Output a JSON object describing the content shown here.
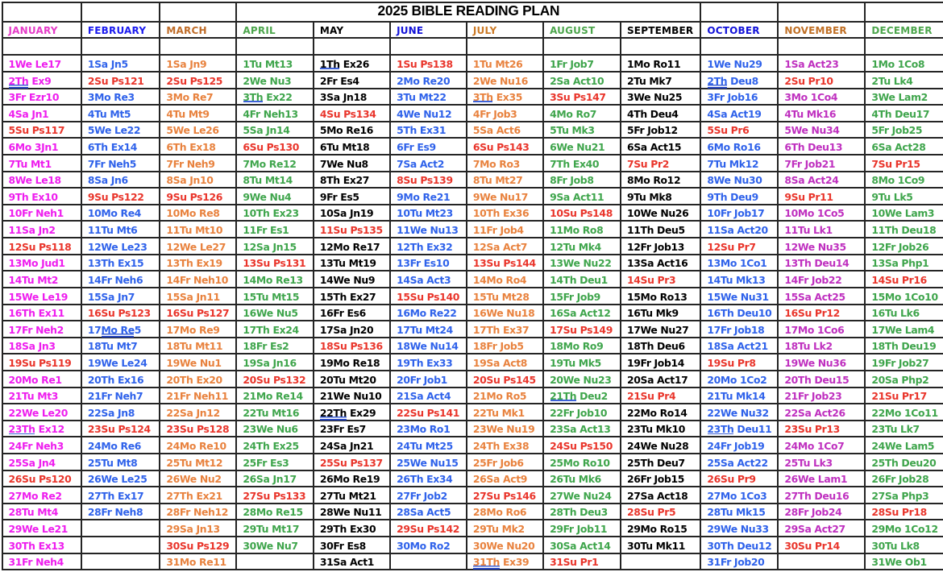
{
  "title": "2025 BIBLE READING PLAN",
  "colors": {
    "border": "#222222",
    "background": "#ffffff",
    "sunday_red": "#e9352b",
    "underline_single": "#3e63d8",
    "underline_double": "#2b4fd0"
  },
  "months": [
    {
      "name": "JANUARY",
      "header_color": "#e53cc8",
      "body_color": "#ee1dee",
      "days": [
        "1We Le17",
        "2Th Ex9",
        "3Fr Ezr10",
        "4Sa Jn1",
        "5Su Ps117",
        "6Mo 3Jn1",
        "7Tu Mt1",
        "8We Le18",
        "9Th Ex10",
        "10Fr Neh1",
        "11Sa Jn2",
        "12Su Ps118",
        "13Mo Jud1",
        "14Tu Mt2",
        "15We Le19",
        "16Th Ex11",
        "17Fr Neh2",
        "18Sa Jn3",
        "19Su Ps119",
        "20Mo Re1",
        "21Tu Mt3",
        "22We Le20",
        "23Th Ex12",
        "24Fr Neh3",
        "25Sa Jn4",
        "26Su Ps120",
        "27Mo Re2",
        "28Tu Mt4",
        "29We Le21",
        "30Th Ex13",
        "31Fr Neh4"
      ]
    },
    {
      "name": "FEBRUARY",
      "header_color": "#1b1bf0",
      "body_color": "#2f62ea",
      "days": [
        "1Sa Jn5",
        "2Su Ps121",
        "3Mo Re3",
        "4Tu Mt5",
        "5We Le22",
        "6Th Ex14",
        "7Fr Neh5",
        "8Sa Jn6",
        "9Su Ps122",
        "10Mo Re4",
        "11Tu Mt6",
        "12We Le23",
        "13Th Ex15",
        "14Fr Neh6",
        "15Sa Jn7",
        "16Su Ps123",
        "17Mo Re5",
        "18Tu Mt7",
        "19We Le24",
        "20Th Ex16",
        "21Fr Neh7",
        "22Sa Jn8",
        "23Su Ps124",
        "24Mo Re6",
        "25Tu Mt8",
        "26We Le25",
        "27Th Ex17",
        "28Fr Neh8",
        "",
        "",
        ""
      ]
    },
    {
      "name": "MARCH",
      "header_color": "#bf6c28",
      "body_color": "#e8823e",
      "days": [
        "1Sa Jn9",
        "2Su Ps125",
        "3Mo Re7",
        "4Tu Mt9",
        "5We Le26",
        "6Th Ex18",
        "7Fr Neh9",
        "8Sa Jn10",
        "9Su Ps126",
        "10Mo Re8",
        "11Tu Mt10",
        "12We Le27",
        "13Th Ex19",
        "14Fr Neh10",
        "15Sa Jn11",
        "16Su Ps127",
        "17Mo Re9",
        "18Tu Mt11",
        "19We Nu1",
        "20Th Ex20",
        "21Fr Neh11",
        "22Sa Jn12",
        "23Su Ps128",
        "24Mo Re10",
        "25Tu Mt12",
        "26We Nu2",
        "27Th Ex21",
        "28Fr Neh12",
        "29Sa Jn13",
        "30Su Ps129",
        "31Mo Re11"
      ]
    },
    {
      "name": "APRIL",
      "header_color": "#4da64d",
      "body_color": "#3fa54c",
      "days": [
        "1Tu Mt13",
        "2We Nu3",
        "3Th Ex22",
        "4Fr Neh13",
        "5Sa Jn14",
        "6Su Ps130",
        "7Mo Re12",
        "8Tu Mt14",
        "9We Nu4",
        "10Th Ex23",
        "11Fr Es1",
        "12Sa Jn15",
        "13Su Ps131",
        "14Mo Re13",
        "15Tu Mt15",
        "16We Nu5",
        "17Th Ex24",
        "18Fr Es2",
        "19Sa Jn16",
        "20Su Ps132",
        "21Mo Re14",
        "22Tu Mt16",
        "23We Nu6",
        "24Th Ex25",
        "25Fr Es3",
        "26Sa Jn17",
        "27Su Ps133",
        "28Mo Re15",
        "29Tu Mt17",
        "30We Nu7",
        ""
      ]
    },
    {
      "name": "MAY",
      "header_color": "#000000",
      "body_color": "#000000",
      "days": [
        "1Th Ex26",
        "2Fr Es4",
        "3Sa Jn18",
        "4Su Ps134",
        "5Mo Re16",
        "6Tu Mt18",
        "7We Nu8",
        "8Th Ex27",
        "9Fr Es5",
        "10Sa Jn19",
        "11Su Ps135",
        "12Mo Re17",
        "13Tu Mt19",
        "14We Nu9",
        "15Th Ex27",
        "16Fr Es6",
        "17Sa Jn20",
        "18Su Ps136",
        "19Mo Re18",
        "20Tu Mt20",
        "21We Nu10",
        "22Th Ex29",
        "23Fr Es7",
        "24Sa Jn21",
        "25Su Ps137",
        "26Mo Re19",
        "27Tu Mt21",
        "28We Nu11",
        "29Th Ex30",
        "30Fr Es8",
        "31Sa Act1"
      ]
    },
    {
      "name": "JUNE",
      "header_color": "#1212d9",
      "body_color": "#2f62ea",
      "days": [
        "1Su Ps138",
        "2Mo Re20",
        "3Tu Mt22",
        "4We Nu12",
        "5Th Ex31",
        "6Fr Es9",
        "7Sa Act2",
        "8Su Ps139",
        "9Mo Re21",
        "10Tu Mt23",
        "11We Nu13",
        "12Th Ex32",
        "13Fr Es10",
        "14Sa Act3",
        "15Su Ps140",
        "16Mo Re22",
        "17Tu Mt24",
        "18We Nu14",
        "19Th Ex33",
        "20Fr Job1",
        "21Sa Act4",
        "22Su Ps141",
        "23Mo Ro1",
        "24Tu Mt25",
        "25We Nu15",
        "26Th Ex34",
        "27Fr Job2",
        "28Sa Act5",
        "29Su Ps142",
        "30Mo Ro2",
        ""
      ]
    },
    {
      "name": "JULY",
      "header_color": "#cc7a26",
      "body_color": "#e8823e",
      "days": [
        "1Tu Mt26",
        "2We Nu16",
        "3Th Ex35",
        "4Fr Job3",
        "5Sa Act6",
        "6Su Ps143",
        "7Mo Ro3",
        "8Tu Mt27",
        "9We Nu17",
        "10Th Ex36",
        "11Fr Job4",
        "12Sa Act7",
        "13Su Ps144",
        "14Mo Ro4",
        "15Tu Mt28",
        "16We Nu18",
        "17Th Ex37",
        "18Fr Job5",
        "19Sa Act8",
        "20Su Ps145",
        "21Mo Ro5",
        "22Tu Mk1",
        "23We Nu19",
        "24Th Ex38",
        "25Fr Job6",
        "26Sa Act9",
        "27Su Ps146",
        "28Mo Ro6",
        "29Tu Mk2",
        "30We Nu20",
        "31Th Ex39"
      ]
    },
    {
      "name": "AUGUST",
      "header_color": "#4da64d",
      "body_color": "#3fa54c",
      "days": [
        "1Fr Job7",
        "2Sa Act10",
        "3Su Ps147",
        "4Mo Ro7",
        "5Tu Mk3",
        "6We Nu21",
        "7Th Ex40",
        "8Fr Job8",
        "9Sa Act11",
        "10Su Ps148",
        "11Mo Ro8",
        "12Tu Mk4",
        "13We Nu22",
        "14Th Deu1",
        "15Fr Job9",
        "16Sa Act12",
        "17Su Ps149",
        "18Mo Ro9",
        "19Tu Mk5",
        "20We Nu23",
        "21Th Deu2",
        "22Fr Job10",
        "23Sa Act13",
        "24Su Ps150",
        "25Mo Ro10",
        "26Tu Mk6",
        "27We Nu24",
        "28Th Deu3",
        "29Fr Job11",
        "30Sa Act14",
        "31Su Pr1"
      ]
    },
    {
      "name": "SEPTEMBER",
      "header_color": "#000000",
      "body_color": "#000000",
      "days": [
        "1Mo Ro11",
        "2Tu Mk7",
        "3We Nu25",
        "4Th Deu4",
        "5Fr Job12",
        "6Sa Act15",
        "7Su Pr2",
        "8Mo Ro12",
        "9Tu Mk8",
        "10We Nu26",
        "11Th Deu5",
        "12Fr Job13",
        "13Sa Act16",
        "14Su Pr3",
        "15Mo Ro13",
        "16Tu Mk9",
        "17We Nu27",
        "18Th Deu6",
        "19Fr Job14",
        "20Sa Act17",
        "21Su Pr4",
        "22Mo Ro14",
        "23Tu Mk10",
        "24We Nu28",
        "25Th Deu7",
        "26Fr Job15",
        "27Sa Act18",
        "28Su Pr5",
        "29Mo Ro15",
        "30Tu Mk11",
        ""
      ]
    },
    {
      "name": "OCTOBER",
      "header_color": "#1212d9",
      "body_color": "#2f62ea",
      "days": [
        "1We Nu29",
        "2Th Deu8",
        "3Fr Job16",
        "4Sa Act19",
        "5Su Pr6",
        "6Mo Ro16",
        "7Tu Mk12",
        "8We Nu30",
        "9Th Deu9",
        "10Fr Job17",
        "11Sa Act20",
        "12Su Pr7",
        "13Mo 1Co1",
        "14Tu Mk13",
        "15We Nu31",
        "16Th Deu10",
        "17Fr Job18",
        "18Sa Act21",
        "19Su Pr8",
        "20Mo 1Co2",
        "21Tu Mk14",
        "22We Nu32",
        "23Th Deu11",
        "24Fr Job19",
        "25Sa Act22",
        "26Su Pr9",
        "27Mo 1Co3",
        "28Tu Mk15",
        "29We Nu33",
        "30Th Deu12",
        "31Fr Job20"
      ]
    },
    {
      "name": "NOVEMBER",
      "header_color": "#c06f24",
      "body_color": "#bf30bf",
      "days": [
        "1Sa Act23",
        "2Su Pr10",
        "3Mo 1Co4",
        "4Tu Mk16",
        "5We Nu34",
        "6Th Deu13",
        "7Fr Job21",
        "8Sa Act24",
        "9Su Pr11",
        "10Mo 1Co5",
        "11Tu Lk1",
        "12We Nu35",
        "13Th Deu14",
        "14Fr Job22",
        "15Sa Act25",
        "16Su Pr12",
        "17Mo 1Co6",
        "18Tu Lk2",
        "19We Nu36",
        "20Th Deu15",
        "21Fr Job23",
        "22Sa Act26",
        "23Su Pr13",
        "24Mo 1Co7",
        "25Tu Lk3",
        "26We Lam1",
        "27Th Deu16",
        "28Fr Job24",
        "29Sa Act27",
        "30Su Pr14",
        ""
      ]
    },
    {
      "name": "DECEMBER",
      "header_color": "#4da64d",
      "body_color": "#3fa54c",
      "days": [
        "1Mo 1Co8",
        "2Tu Lk4",
        "3We Lam2",
        "4Th Deu17",
        "5Fr Job25",
        "6Sa Act28",
        "7Su Pr15",
        "8Mo 1Co9",
        "9Tu Lk5",
        "10We Lam3",
        "11Th Deu18",
        "12Fr Job26",
        "13Sa Php1",
        "14Su Pr16",
        "15Mo 1Co10",
        "16Tu Lk6",
        "17We Lam4",
        "18Th Deu19",
        "19Fr Job27",
        "20Sa Php2",
        "21Su Pr17",
        "22Mo 1Co11",
        "23Tu Lk7",
        "24We Lam5",
        "25Th Deu20",
        "26Fr Job28",
        "27Sa Php3",
        "28Su Pr18",
        "29Mo 1Co12",
        "30Tu Lk8",
        "31We Ob1"
      ]
    }
  ],
  "underlines": [
    {
      "month": "JANUARY",
      "day": 2,
      "style": "double"
    },
    {
      "month": "JANUARY",
      "day": 23,
      "style": "single"
    },
    {
      "month": "FEBRUARY",
      "day": 17,
      "style": "double",
      "pre": "17",
      "underlined": "Mo Re",
      "post": "5"
    },
    {
      "month": "APRIL",
      "day": 3,
      "style": "single"
    },
    {
      "month": "MAY",
      "day": 1,
      "style": "single"
    },
    {
      "month": "MAY",
      "day": 22,
      "style": "double"
    },
    {
      "month": "JULY",
      "day": 3,
      "style": "single"
    },
    {
      "month": "JULY",
      "day": 31,
      "style": "double"
    },
    {
      "month": "AUGUST",
      "day": 21,
      "style": "single"
    },
    {
      "month": "OCTOBER",
      "day": 2,
      "style": "double"
    },
    {
      "month": "OCTOBER",
      "day": 23,
      "style": "single"
    }
  ]
}
